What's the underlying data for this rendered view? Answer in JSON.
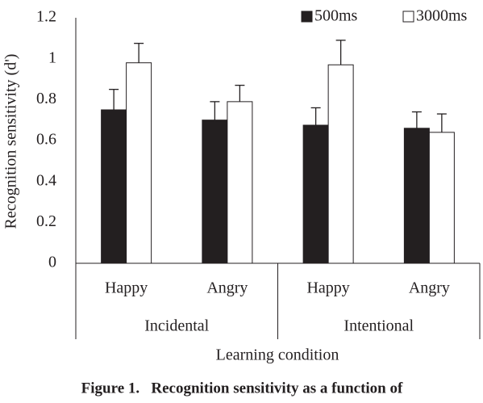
{
  "chart_data": {
    "type": "bar",
    "y_label": "Recognition sensitivity (d')",
    "x_label": "Learning condition",
    "caption": "Figure 1.   Recognition sensitivity as a function of",
    "categories": [
      "Happy",
      "Angry",
      "Happy",
      "Angry"
    ],
    "groups": [
      "Incidental",
      "Intentional"
    ],
    "series": [
      {
        "name": "500ms",
        "color": "#231f20",
        "values": [
          0.75,
          0.7,
          0.675,
          0.66
        ],
        "errors": [
          0.1,
          0.09,
          0.085,
          0.08
        ]
      },
      {
        "name": "3000ms",
        "color": "#ffffff",
        "values": [
          0.98,
          0.79,
          0.97,
          0.64
        ],
        "errors": [
          0.095,
          0.08,
          0.12,
          0.09
        ]
      }
    ],
    "ylim": [
      0,
      1.2
    ],
    "yticks": [
      0,
      0.2,
      0.4,
      0.6,
      0.8,
      1,
      1.2
    ],
    "grid": false,
    "legend": "upper right"
  }
}
